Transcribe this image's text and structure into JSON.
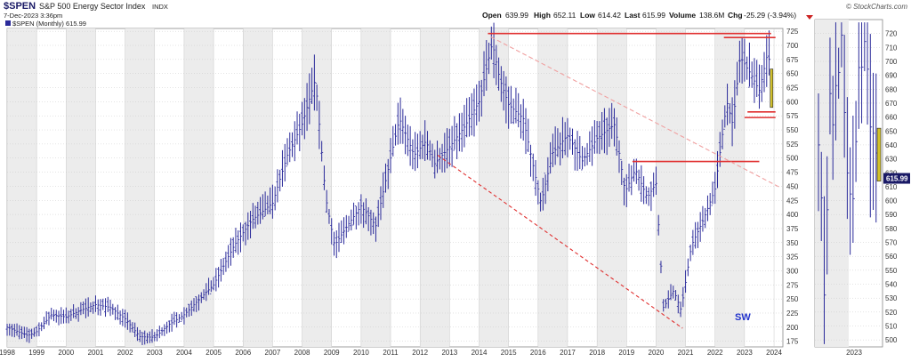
{
  "header": {
    "ticker": "$SPEN",
    "name": "S&P 500 Energy Sector Index",
    "exchange": "INDX",
    "datetime": "7-Dec-2023 3:36pm",
    "legend": "$SPEN (Monthly) 615.99",
    "open_label": "Open",
    "open": "639.99",
    "high_label": "High",
    "high": "652.11",
    "low_label": "Low",
    "low": "614.42",
    "last_label": "Last",
    "last": "615.99",
    "volume_label": "Volume",
    "volume": "138.6M",
    "chg_label": "Chg",
    "chg": "-25.29 (-3.94%)",
    "logo": "© StockCharts.com",
    "annotation": "SW"
  },
  "colors": {
    "bars": "#2a2a9a",
    "trend": "#e03030",
    "trend_faint": "#f0a0a0",
    "last_candle": "#d4c22a",
    "shade": "#ececec",
    "grid": "#c9c9c9",
    "price_tag": "#1a1a66"
  },
  "chart_data": [
    {
      "type": "bar",
      "title": "",
      "interval": "Monthly",
      "ylim": [
        165,
        730
      ],
      "yticks": [
        175,
        200,
        225,
        250,
        275,
        300,
        325,
        350,
        375,
        400,
        425,
        450,
        475,
        500,
        525,
        550,
        575,
        600,
        625,
        650,
        675,
        700,
        725
      ],
      "x_years": [
        "1998",
        "1999",
        "2000",
        "2001",
        "2002",
        "2003",
        "2004",
        "2005",
        "2006",
        "2007",
        "2008",
        "2009",
        "2010",
        "2011",
        "2012",
        "2013",
        "2014",
        "2015",
        "2016",
        "2017",
        "2018",
        "2019",
        "2020",
        "2021",
        "2022",
        "2023",
        "2024"
      ],
      "last_value": 615.99,
      "anchors": [
        {
          "t": 1998.0,
          "v": 200
        },
        {
          "t": 1998.7,
          "v": 185
        },
        {
          "t": 1999.0,
          "v": 192
        },
        {
          "t": 1999.5,
          "v": 222
        },
        {
          "t": 2000.0,
          "v": 218
        },
        {
          "t": 2000.5,
          "v": 230
        },
        {
          "t": 2001.0,
          "v": 240
        },
        {
          "t": 2001.5,
          "v": 235
        },
        {
          "t": 2002.0,
          "v": 215
        },
        {
          "t": 2002.5,
          "v": 183
        },
        {
          "t": 2003.0,
          "v": 182
        },
        {
          "t": 2003.5,
          "v": 205
        },
        {
          "t": 2004.0,
          "v": 222
        },
        {
          "t": 2005.0,
          "v": 275
        },
        {
          "t": 2005.7,
          "v": 345
        },
        {
          "t": 2006.3,
          "v": 390
        },
        {
          "t": 2007.0,
          "v": 420
        },
        {
          "t": 2007.5,
          "v": 505
        },
        {
          "t": 2008.0,
          "v": 560
        },
        {
          "t": 2008.45,
          "v": 640
        },
        {
          "t": 2008.8,
          "v": 430
        },
        {
          "t": 2009.1,
          "v": 345
        },
        {
          "t": 2009.6,
          "v": 385
        },
        {
          "t": 2010.0,
          "v": 415
        },
        {
          "t": 2010.5,
          "v": 380
        },
        {
          "t": 2011.0,
          "v": 500
        },
        {
          "t": 2011.3,
          "v": 570
        },
        {
          "t": 2011.8,
          "v": 505
        },
        {
          "t": 2012.2,
          "v": 530
        },
        {
          "t": 2012.5,
          "v": 490
        },
        {
          "t": 2013.0,
          "v": 520
        },
        {
          "t": 2013.5,
          "v": 555
        },
        {
          "t": 2014.0,
          "v": 600
        },
        {
          "t": 2014.45,
          "v": 705
        },
        {
          "t": 2014.7,
          "v": 640
        },
        {
          "t": 2015.0,
          "v": 595
        },
        {
          "t": 2015.5,
          "v": 570
        },
        {
          "t": 2015.9,
          "v": 470
        },
        {
          "t": 2016.1,
          "v": 420
        },
        {
          "t": 2016.5,
          "v": 510
        },
        {
          "t": 2017.0,
          "v": 540
        },
        {
          "t": 2017.5,
          "v": 495
        },
        {
          "t": 2018.0,
          "v": 535
        },
        {
          "t": 2018.6,
          "v": 560
        },
        {
          "t": 2018.95,
          "v": 440
        },
        {
          "t": 2019.3,
          "v": 480
        },
        {
          "t": 2019.7,
          "v": 430
        },
        {
          "t": 2020.0,
          "v": 455
        },
        {
          "t": 2020.25,
          "v": 235
        },
        {
          "t": 2020.6,
          "v": 265
        },
        {
          "t": 2020.85,
          "v": 230
        },
        {
          "t": 2021.2,
          "v": 345
        },
        {
          "t": 2021.6,
          "v": 390
        },
        {
          "t": 2022.0,
          "v": 445
        },
        {
          "t": 2022.4,
          "v": 600
        },
        {
          "t": 2022.6,
          "v": 560
        },
        {
          "t": 2022.85,
          "v": 680
        },
        {
          "t": 2023.2,
          "v": 650
        },
        {
          "t": 2023.5,
          "v": 620
        },
        {
          "t": 2023.8,
          "v": 690
        },
        {
          "t": 2023.93,
          "v": 632
        }
      ],
      "trend_lines": [
        {
          "t1": 2014.3,
          "v1": 721,
          "t2": 2023.9,
          "v2": 721
        },
        {
          "t1": 2022.3,
          "v1": 714,
          "t2": 2024.05,
          "v2": 714
        },
        {
          "t1": 2019.2,
          "v1": 494,
          "t2": 2023.5,
          "v2": 494
        },
        {
          "t1": 2023.1,
          "v1": 582,
          "t2": 2024.05,
          "v2": 582
        },
        {
          "t1": 2023.0,
          "v1": 572,
          "t2": 2024.05,
          "v2": 572
        },
        {
          "t1": 2012.6,
          "v1": 505,
          "t2": 2020.9,
          "v2": 198,
          "style": "dashed"
        },
        {
          "t1": 2014.4,
          "v1": 715,
          "t2": 2024.2,
          "v2": 448,
          "style": "dashed-faint"
        }
      ]
    },
    {
      "type": "bar",
      "title": "",
      "interval": "Daily",
      "ylim": [
        495,
        730
      ],
      "yticks": [
        500,
        510,
        520,
        530,
        540,
        550,
        560,
        570,
        580,
        590,
        600,
        610,
        620,
        630,
        640,
        650,
        660,
        670,
        680,
        690,
        700,
        710,
        720
      ],
      "x_years": [
        "2023"
      ],
      "last_value": 615.99,
      "price_tag": "615.99",
      "anchors": [
        {
          "t": 0.0,
          "v": 640
        },
        {
          "t": 0.05,
          "v": 600
        },
        {
          "t": 0.08,
          "v": 520
        },
        {
          "t": 0.13,
          "v": 560
        },
        {
          "t": 0.18,
          "v": 690
        },
        {
          "t": 0.22,
          "v": 640
        },
        {
          "t": 0.27,
          "v": 680
        },
        {
          "t": 0.33,
          "v": 690
        },
        {
          "t": 0.38,
          "v": 720
        },
        {
          "t": 0.44,
          "v": 650
        },
        {
          "t": 0.5,
          "v": 600
        },
        {
          "t": 0.55,
          "v": 610
        },
        {
          "t": 0.6,
          "v": 590
        },
        {
          "t": 0.64,
          "v": 700
        },
        {
          "t": 0.7,
          "v": 690
        },
        {
          "t": 0.76,
          "v": 715
        },
        {
          "t": 0.82,
          "v": 690
        },
        {
          "t": 0.87,
          "v": 640
        },
        {
          "t": 0.92,
          "v": 652
        },
        {
          "t": 0.96,
          "v": 630
        },
        {
          "t": 1.0,
          "v": 616
        }
      ]
    }
  ]
}
